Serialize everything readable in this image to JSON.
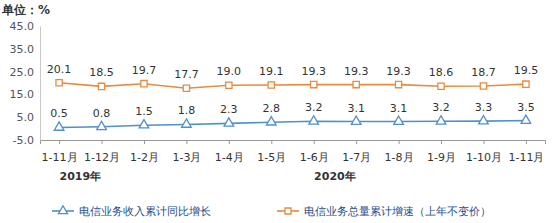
{
  "chart_data": {
    "type": "line",
    "ylabel": "单位：%",
    "categories": [
      "1-11月",
      "1-12月",
      "1-2月",
      "1-3月",
      "1-4月",
      "1-5月",
      "1-6月",
      "1-7月",
      "1-8月",
      "1-9月",
      "1-10月",
      "1-11月"
    ],
    "annotations": [
      {
        "text": "2019年",
        "span": [
          0,
          1
        ]
      },
      {
        "text": "2020年",
        "span": [
          2,
          11
        ]
      }
    ],
    "ylim": [
      -5,
      45
    ],
    "yticks": [
      {
        "value": -5,
        "label": "-5.0"
      },
      {
        "value": 5,
        "label": "5.0"
      },
      {
        "value": 15,
        "label": "15.0"
      },
      {
        "value": 25,
        "label": "25.0"
      },
      {
        "value": 35,
        "label": "35.0"
      },
      {
        "value": 45,
        "label": "45.0"
      }
    ],
    "grid": false,
    "data_labels": true,
    "legend": "bottom",
    "series": [
      {
        "name": "电信业务收入累计同比增长",
        "color": "#4f8fcd",
        "marker": "triangle",
        "values": [
          0.5,
          0.8,
          1.5,
          1.8,
          2.3,
          2.8,
          3.2,
          3.1,
          3.1,
          3.2,
          3.3,
          3.5
        ],
        "value_labels": [
          "0.5",
          "0.8",
          "1.5",
          "1.8",
          "2.3",
          "2.8",
          "3.2",
          "3.1",
          "3.1",
          "3.2",
          "3.3",
          "3.5"
        ]
      },
      {
        "name": "电信业务总量累计增速（上年不变价）",
        "color": "#ea8a3e",
        "marker": "square",
        "values": [
          20.1,
          18.5,
          19.7,
          17.7,
          19.0,
          19.1,
          19.3,
          19.3,
          19.3,
          18.6,
          18.7,
          19.5
        ],
        "value_labels": [
          "20.1",
          "18.5",
          "19.7",
          "17.7",
          "19.0",
          "19.1",
          "19.3",
          "19.3",
          "19.3",
          "18.6",
          "18.7",
          "19.5"
        ]
      }
    ]
  }
}
